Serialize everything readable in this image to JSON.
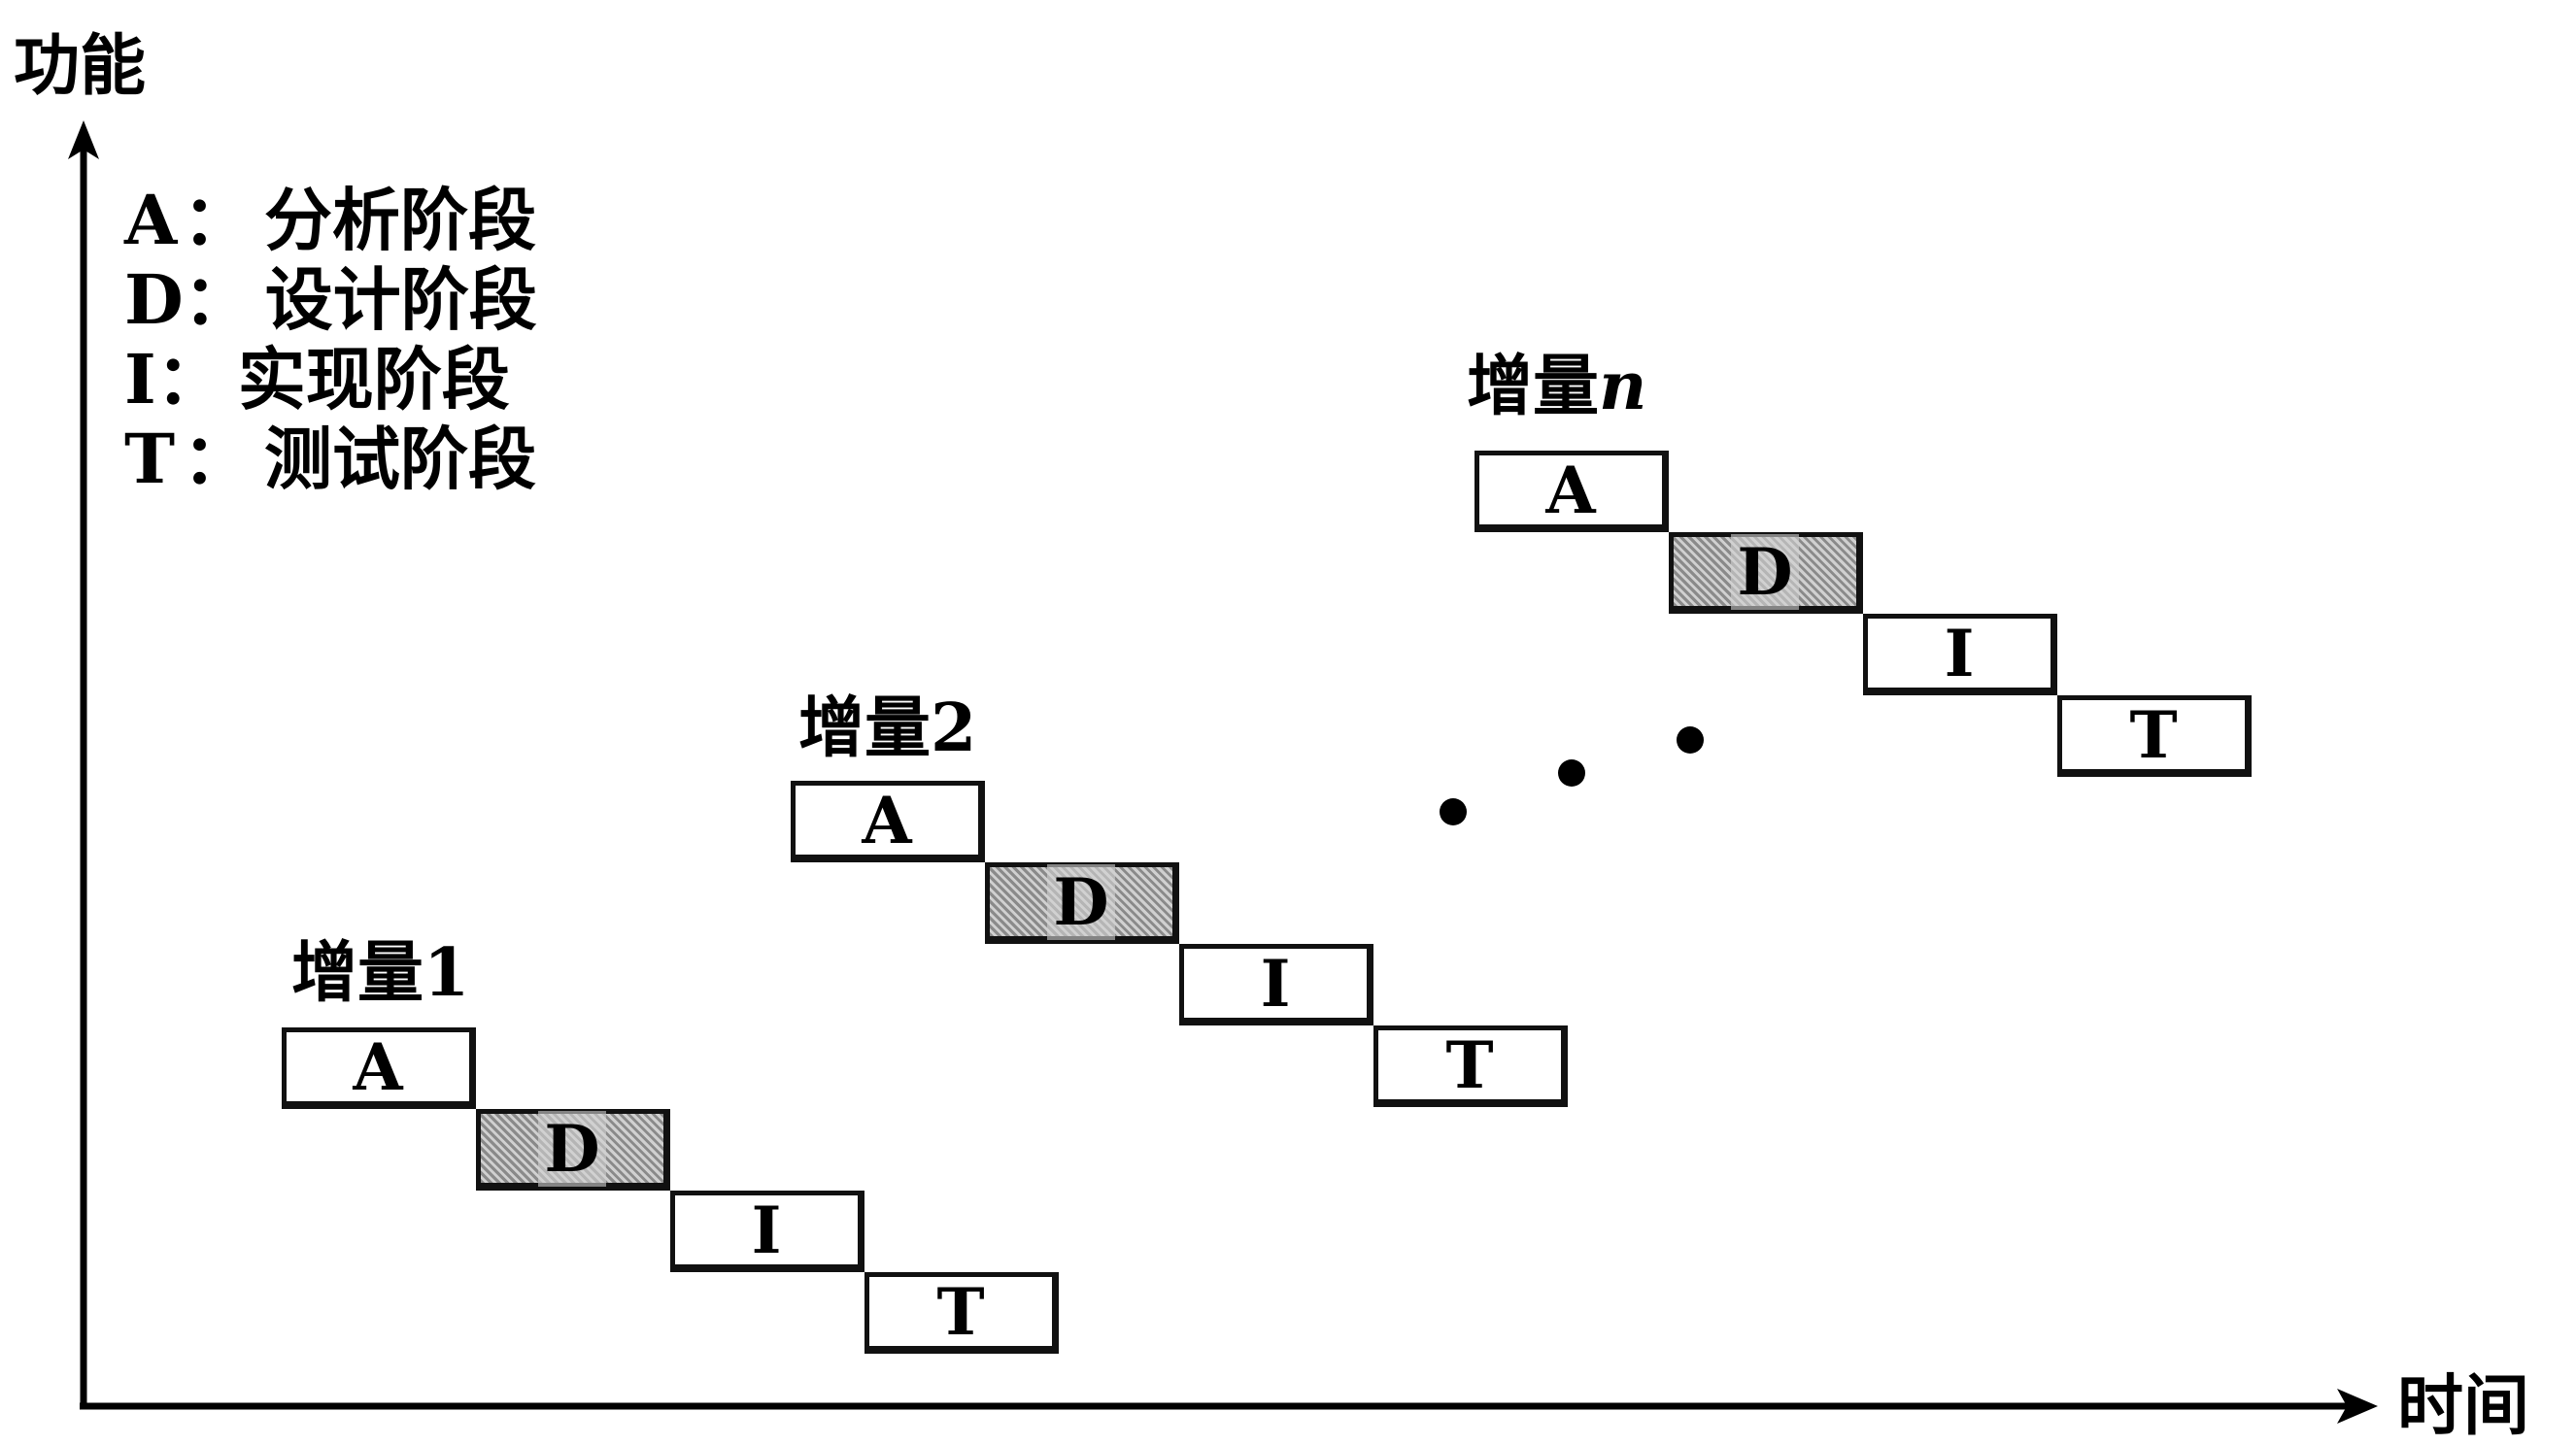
{
  "axes": {
    "y_label": "功能",
    "x_label": "时间"
  },
  "legend": [
    {
      "key": "A",
      "sep": "：",
      "text": "分析阶段"
    },
    {
      "key": "D",
      "sep": "：",
      "text": "设计阶段"
    },
    {
      "key": "I",
      "sep": "：",
      "text": "实现阶段"
    },
    {
      "key": "T",
      "sep": "：",
      "text": "测试阶段"
    }
  ],
  "increments": [
    {
      "label": "增量1",
      "label_suffix": "",
      "stages": [
        "A",
        "D",
        "I",
        "T"
      ],
      "shaded_stage": "D"
    },
    {
      "label": "增量2",
      "label_suffix": "",
      "stages": [
        "A",
        "D",
        "I",
        "T"
      ],
      "shaded_stage": "D"
    },
    {
      "label": "增量",
      "label_suffix": "n",
      "stages": [
        "A",
        "D",
        "I",
        "T"
      ],
      "shaded_stage": "D"
    }
  ],
  "continuation": {
    "count": 3,
    "icon": "ellipsis-dots"
  },
  "colors": {
    "line": "#000000",
    "shade": "#a0a0a0",
    "background": "#ffffff"
  }
}
